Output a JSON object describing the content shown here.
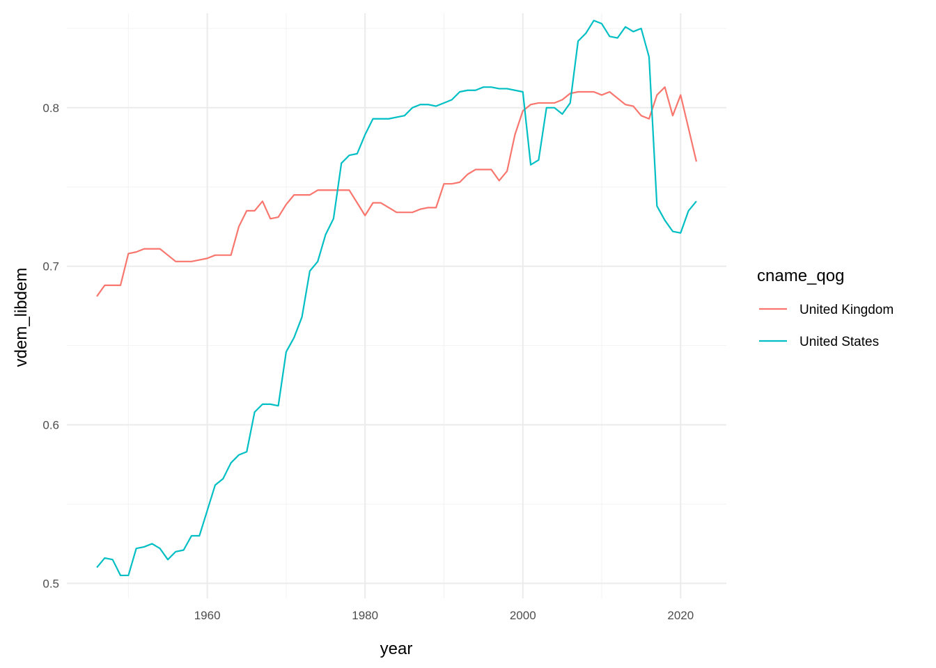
{
  "chart_data": {
    "type": "line",
    "title": "",
    "xlabel": "year",
    "ylabel": "vdem_libdem",
    "xlim": [
      1942.2,
      2025.8
    ],
    "ylim": [
      0.4905,
      0.8596
    ],
    "x_ticks": [
      1960,
      1980,
      2000,
      2020
    ],
    "x_tick_labels": [
      "1960",
      "1980",
      "2000",
      "2020"
    ],
    "x_minor": [
      1950,
      1970,
      1990,
      2010
    ],
    "y_ticks": [
      0.5,
      0.6,
      0.7,
      0.8
    ],
    "y_tick_labels": [
      "0.5",
      "0.6",
      "0.7",
      "0.8"
    ],
    "y_minor": [
      0.55,
      0.65,
      0.75,
      0.85
    ],
    "legend": {
      "title": "cname_qog",
      "position": "right"
    },
    "x": [
      1946,
      1947,
      1948,
      1949,
      1950,
      1951,
      1952,
      1953,
      1954,
      1955,
      1956,
      1957,
      1958,
      1959,
      1960,
      1961,
      1962,
      1963,
      1964,
      1965,
      1966,
      1967,
      1968,
      1969,
      1970,
      1971,
      1972,
      1973,
      1974,
      1975,
      1976,
      1977,
      1978,
      1979,
      1980,
      1981,
      1982,
      1983,
      1984,
      1985,
      1986,
      1987,
      1988,
      1989,
      1990,
      1991,
      1992,
      1993,
      1994,
      1995,
      1996,
      1997,
      1998,
      1999,
      2000,
      2001,
      2002,
      2003,
      2004,
      2005,
      2006,
      2007,
      2008,
      2009,
      2010,
      2011,
      2012,
      2013,
      2014,
      2015,
      2016,
      2017,
      2018,
      2019,
      2020,
      2021,
      2022
    ],
    "series": [
      {
        "name": "United Kingdom",
        "color": "#F8766D",
        "values": [
          0.681,
          0.688,
          0.688,
          0.688,
          0.708,
          0.709,
          0.711,
          0.711,
          0.711,
          0.707,
          0.703,
          0.703,
          0.703,
          0.704,
          0.705,
          0.707,
          0.707,
          0.707,
          0.725,
          0.735,
          0.735,
          0.741,
          0.73,
          0.731,
          0.739,
          0.745,
          0.745,
          0.745,
          0.748,
          0.748,
          0.748,
          0.748,
          0.748,
          0.74,
          0.732,
          0.74,
          0.74,
          0.737,
          0.734,
          0.734,
          0.734,
          0.736,
          0.737,
          0.737,
          0.752,
          0.752,
          0.753,
          0.758,
          0.761,
          0.761,
          0.761,
          0.754,
          0.76,
          0.783,
          0.798,
          0.802,
          0.803,
          0.803,
          0.803,
          0.805,
          0.809,
          0.81,
          0.81,
          0.81,
          0.808,
          0.81,
          0.806,
          0.802,
          0.801,
          0.795,
          0.793,
          0.808,
          0.813,
          0.795,
          0.808,
          0.787,
          0.766
        ]
      },
      {
        "name": "United States",
        "color": "#00BFC4",
        "values": [
          0.51,
          0.516,
          0.515,
          0.505,
          0.505,
          0.522,
          0.523,
          0.525,
          0.522,
          0.515,
          0.52,
          0.521,
          0.53,
          0.53,
          0.546,
          0.562,
          0.566,
          0.576,
          0.581,
          0.583,
          0.608,
          0.613,
          0.613,
          0.612,
          0.646,
          0.655,
          0.668,
          0.697,
          0.703,
          0.72,
          0.73,
          0.765,
          0.77,
          0.771,
          0.783,
          0.793,
          0.793,
          0.793,
          0.794,
          0.795,
          0.8,
          0.802,
          0.802,
          0.801,
          0.803,
          0.805,
          0.81,
          0.811,
          0.811,
          0.813,
          0.813,
          0.812,
          0.812,
          0.811,
          0.81,
          0.764,
          0.767,
          0.8,
          0.8,
          0.796,
          0.803,
          0.842,
          0.847,
          0.855,
          0.853,
          0.845,
          0.844,
          0.851,
          0.848,
          0.85,
          0.832,
          0.738,
          0.729,
          0.722,
          0.721,
          0.735,
          0.741
        ]
      }
    ]
  }
}
